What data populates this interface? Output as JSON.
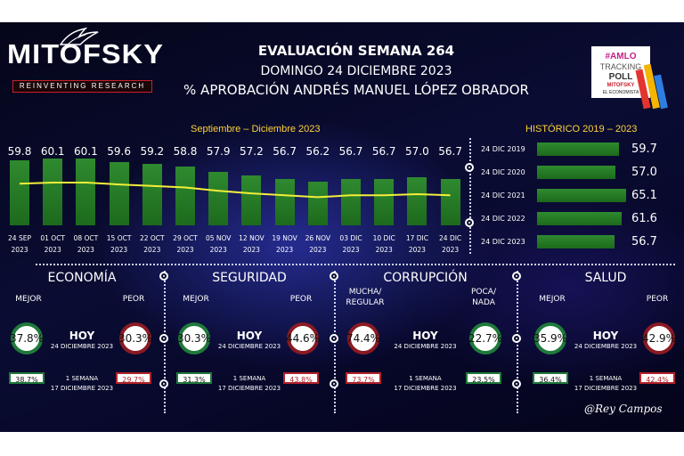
{
  "brand": {
    "name": "MITOFSKY",
    "tagline": "REINVENTING RESEARCH"
  },
  "header": {
    "title": "EVALUACIÓN SEMANA 264",
    "subtitle": "DOMINGO 24 DICIEMBRE 2023",
    "approval": "% APROBACIÓN ANDRÉS MANUEL LÓPEZ OBRADOR"
  },
  "poll_logo": {
    "line1": "#AMLO",
    "line2": "TRACKING",
    "line3": "POLL",
    "line4": "MITOFSKY",
    "line5": "EL ECONOMISTA"
  },
  "labels": {
    "range": "Septiembre – Diciembre 2023",
    "historico": "HISTÓRICO 2019 – 2023"
  },
  "colors": {
    "bar": "#2f8a2f",
    "trend": "#f2ee3a",
    "good_ring": "#1f7a3a",
    "bad_ring": "#8a1a22",
    "accent": "#ffd23a"
  },
  "chart_data": [
    {
      "type": "bar",
      "title": "Septiembre – Diciembre 2023",
      "categories": [
        "24 SEP 2023",
        "01 OCT 2023",
        "08 OCT 2023",
        "15 OCT 2023",
        "22 OCT 2023",
        "29 OCT 2023",
        "05 NOV 2023",
        "12 NOV 2023",
        "19 NOV 2023",
        "26 NOV 2023",
        "03 DIC 2023",
        "10 DIC 2023",
        "17 DIC 2023",
        "24 DIC 2023"
      ],
      "cat_day": [
        "24 SEP",
        "01 OCT",
        "08 OCT",
        "15 OCT",
        "22 OCT",
        "29 OCT",
        "05 NOV",
        "12 NOV",
        "19 NOV",
        "26 NOV",
        "03 DIC",
        "10 DIC",
        "17 DIC",
        "24 DIC"
      ],
      "cat_year": [
        "2023",
        "2023",
        "2023",
        "2023",
        "2023",
        "2023",
        "2023",
        "2023",
        "2023",
        "2023",
        "2023",
        "2023",
        "2023",
        "2023"
      ],
      "values": [
        59.8,
        60.1,
        60.1,
        59.6,
        59.2,
        58.8,
        57.9,
        57.2,
        56.7,
        56.2,
        56.7,
        56.7,
        57.0,
        56.7
      ],
      "value_labels": [
        "59.8",
        "60.1",
        "60.1",
        "59.6",
        "59.2",
        "58.8",
        "57.9",
        "57.2",
        "56.7",
        "56.2",
        "56.7",
        "56.7",
        "57.0",
        "56.7"
      ],
      "trend_line": true
    },
    {
      "type": "bar",
      "orientation": "horizontal",
      "title": "HISTÓRICO 2019 – 2023",
      "categories": [
        "24 DIC 2019",
        "24 DIC 2020",
        "24 DIC 2021",
        "24 DIC 2022",
        "24 DIC 2023"
      ],
      "values": [
        59.7,
        57.0,
        65.1,
        61.6,
        56.7
      ],
      "value_labels": [
        "59.7",
        "57.0",
        "65.1",
        "61.6",
        "56.7"
      ]
    }
  ],
  "sections": [
    {
      "name": "ECONOMÍA",
      "good_label": "MEJOR",
      "bad_label": "PEOR",
      "today_good": "37.8%",
      "today_bad": "30.3%",
      "prev_good": "38.7%",
      "prev_bad": "29.7%"
    },
    {
      "name": "SEGURIDAD",
      "good_label": "MEJOR",
      "bad_label": "PEOR",
      "today_good": "30.3%",
      "today_bad": "44.6%",
      "prev_good": "31.3%",
      "prev_bad": "43.8%"
    },
    {
      "name": "CORRUPCIÓN",
      "good_label": "POCA/\nNADA",
      "bad_label": "MUCHA/\nREGULAR",
      "today_good": "22.7%",
      "today_bad": "74.4%",
      "prev_good": "23.5%",
      "prev_bad": "73.7%"
    },
    {
      "name": "SALUD",
      "good_label": "MEJOR",
      "bad_label": "PEOR",
      "today_good": "35.9%",
      "today_bad": "42.9%",
      "prev_good": "36.4%",
      "prev_bad": "42.4%"
    }
  ],
  "hoy": {
    "label": "HOY",
    "date": "24 DICIEMBRE 2023"
  },
  "semana": {
    "label": "1 SEMANA",
    "date": "17 DICIEMBRE 2023"
  },
  "signature": "@Rey Campos"
}
